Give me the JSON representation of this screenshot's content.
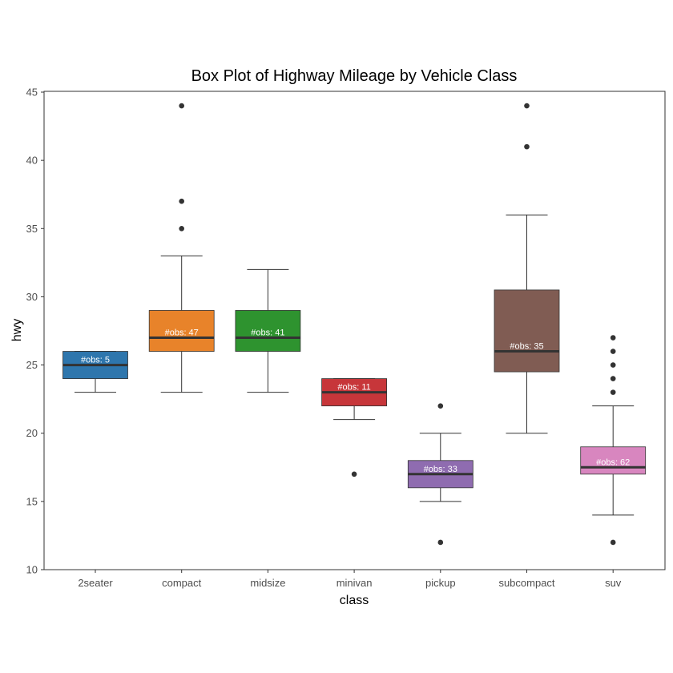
{
  "chart_data": {
    "type": "box",
    "title": "Box Plot of Highway Mileage by Vehicle Class",
    "xlabel": "class",
    "ylabel": "hwy",
    "ylim": [
      10,
      45
    ],
    "yticks": [
      10,
      15,
      20,
      25,
      30,
      35,
      40,
      45
    ],
    "ytick_labels": [
      "10",
      "15",
      "20",
      "25",
      "30",
      "35",
      "40",
      "45"
    ],
    "grid": false,
    "legend": "none",
    "categories": [
      "2seater",
      "compact",
      "midsize",
      "minivan",
      "pickup",
      "subcompact",
      "suv"
    ],
    "boxes": [
      {
        "category": "2seater",
        "color": "#2e76ad",
        "min": 23,
        "q1": 24,
        "median": 25,
        "q3": 26,
        "max": 26,
        "outliers": [],
        "obs_label": "#obs: 5"
      },
      {
        "category": "compact",
        "color": "#e8832a",
        "min": 23,
        "q1": 26,
        "median": 27,
        "q3": 29,
        "max": 33,
        "outliers": [
          35,
          37,
          44
        ],
        "obs_label": "#obs: 47"
      },
      {
        "category": "midsize",
        "color": "#2e932f",
        "min": 23,
        "q1": 26,
        "median": 27,
        "q3": 29,
        "max": 32,
        "outliers": [],
        "obs_label": "#obs: 41"
      },
      {
        "category": "minivan",
        "color": "#c7363a",
        "min": 21,
        "q1": 22,
        "median": 23,
        "q3": 24,
        "max": 24,
        "outliers": [
          17
        ],
        "obs_label": "#obs: 11"
      },
      {
        "category": "pickup",
        "color": "#8f6cb0",
        "min": 15,
        "q1": 16,
        "median": 17,
        "q3": 18,
        "max": 20,
        "outliers": [
          12,
          22
        ],
        "obs_label": "#obs: 33"
      },
      {
        "category": "subcompact",
        "color": "#805c53",
        "min": 20,
        "q1": 24.5,
        "median": 26,
        "q3": 30.5,
        "max": 36,
        "outliers": [
          41,
          44
        ],
        "obs_label": "#obs: 35"
      },
      {
        "category": "suv",
        "color": "#d886bf",
        "min": 14,
        "q1": 17,
        "median": 17.5,
        "q3": 19,
        "max": 22,
        "outliers": [
          12,
          23,
          24,
          25,
          26,
          27
        ],
        "obs_label": "#obs: 62"
      }
    ]
  }
}
